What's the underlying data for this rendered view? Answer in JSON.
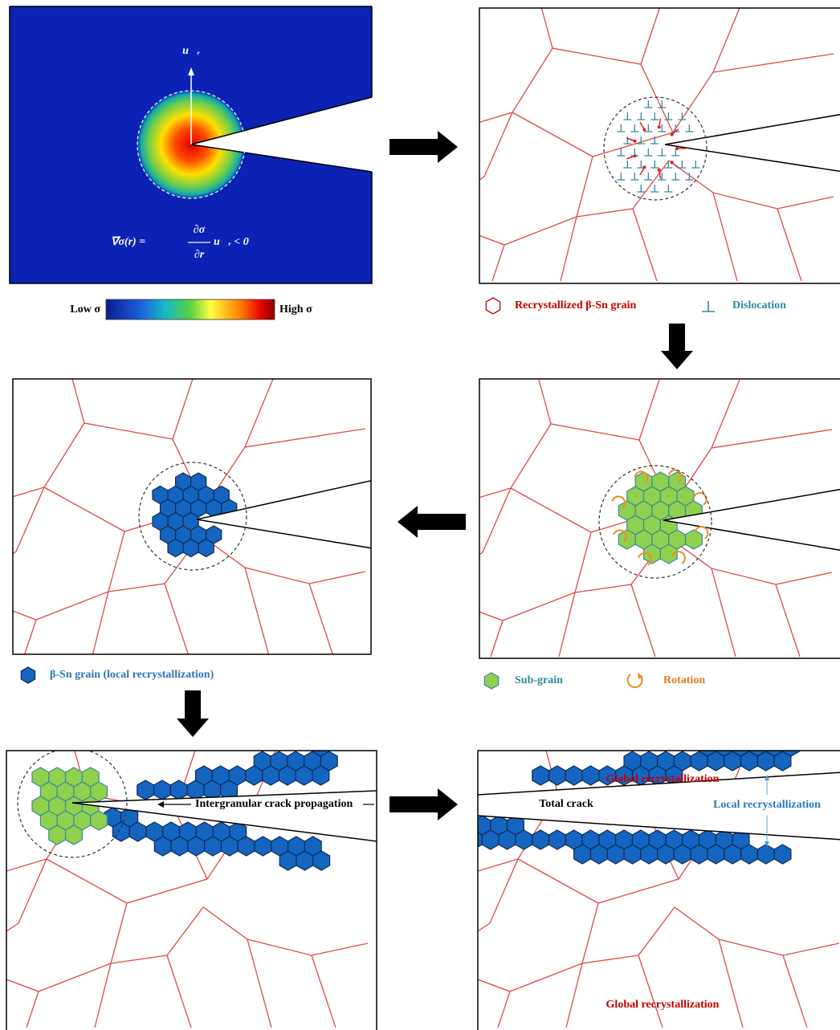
{
  "panel1": {
    "vector_label": "u⃗ᵣ",
    "formula": {
      "lhs": "∇⃗σ(r) =",
      "numerator": "∂σ",
      "denominator": "∂r",
      "rhs": "u⃗ᵣ < 0"
    },
    "colorbar": {
      "low": "Low σ",
      "high": "High σ"
    }
  },
  "panel2": {
    "legend": [
      "Recrystallized β-Sn grain",
      "Dislocation"
    ]
  },
  "panel3": {
    "legend": [
      "Sub-grain",
      "Rotation"
    ]
  },
  "panel4": {
    "legend": [
      "β-Sn grain (local recrystallization)"
    ]
  },
  "panel5": {
    "annotation": "Intergranular crack propagation"
  },
  "panel6": {
    "labels": [
      "Global recrystallization",
      "Total crack",
      "Local recrystallization",
      "Global recrystallization"
    ]
  }
}
